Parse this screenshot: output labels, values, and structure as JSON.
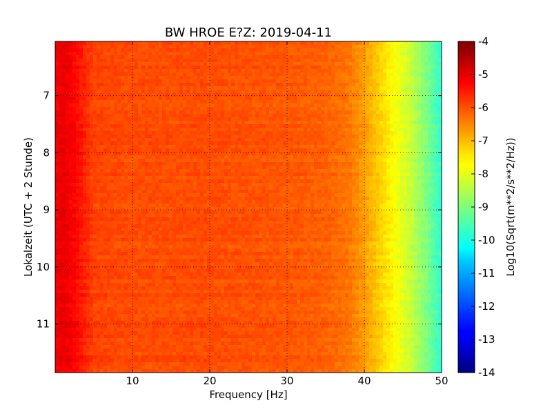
{
  "chart_data": {
    "type": "heatmap",
    "title": "BW HROE E?Z: 2019-04-11",
    "xlabel": "Frequency [Hz]",
    "ylabel": "Lokalzeit (UTC + 2 Stunde)",
    "xlim": [
      0,
      50
    ],
    "ylim": [
      6.05,
      11.85
    ],
    "y_inverted": true,
    "x_ticks": [
      10,
      20,
      30,
      40,
      50
    ],
    "y_ticks": [
      7,
      8,
      9,
      10,
      11
    ],
    "grid": true,
    "grid_style": "dotted",
    "colormap": "jet",
    "colorbar": {
      "label": "Log10(Sqrt(m**2/s**2/Hz))",
      "range": [
        -14,
        -4
      ],
      "ticks": [
        -4,
        -5,
        -6,
        -7,
        -8,
        -9,
        -10,
        -11,
        -12,
        -13,
        -14
      ]
    },
    "spectrum_profile": {
      "frequency_hz": [
        0,
        1,
        3,
        5,
        10,
        20,
        30,
        35,
        38,
        40,
        42,
        44,
        46,
        48,
        50
      ],
      "log10_amplitude": [
        -5.2,
        -5.0,
        -5.4,
        -5.9,
        -6.0,
        -6.0,
        -6.1,
        -6.2,
        -6.4,
        -6.8,
        -7.3,
        -7.8,
        -8.3,
        -9.0,
        -9.8
      ]
    }
  }
}
